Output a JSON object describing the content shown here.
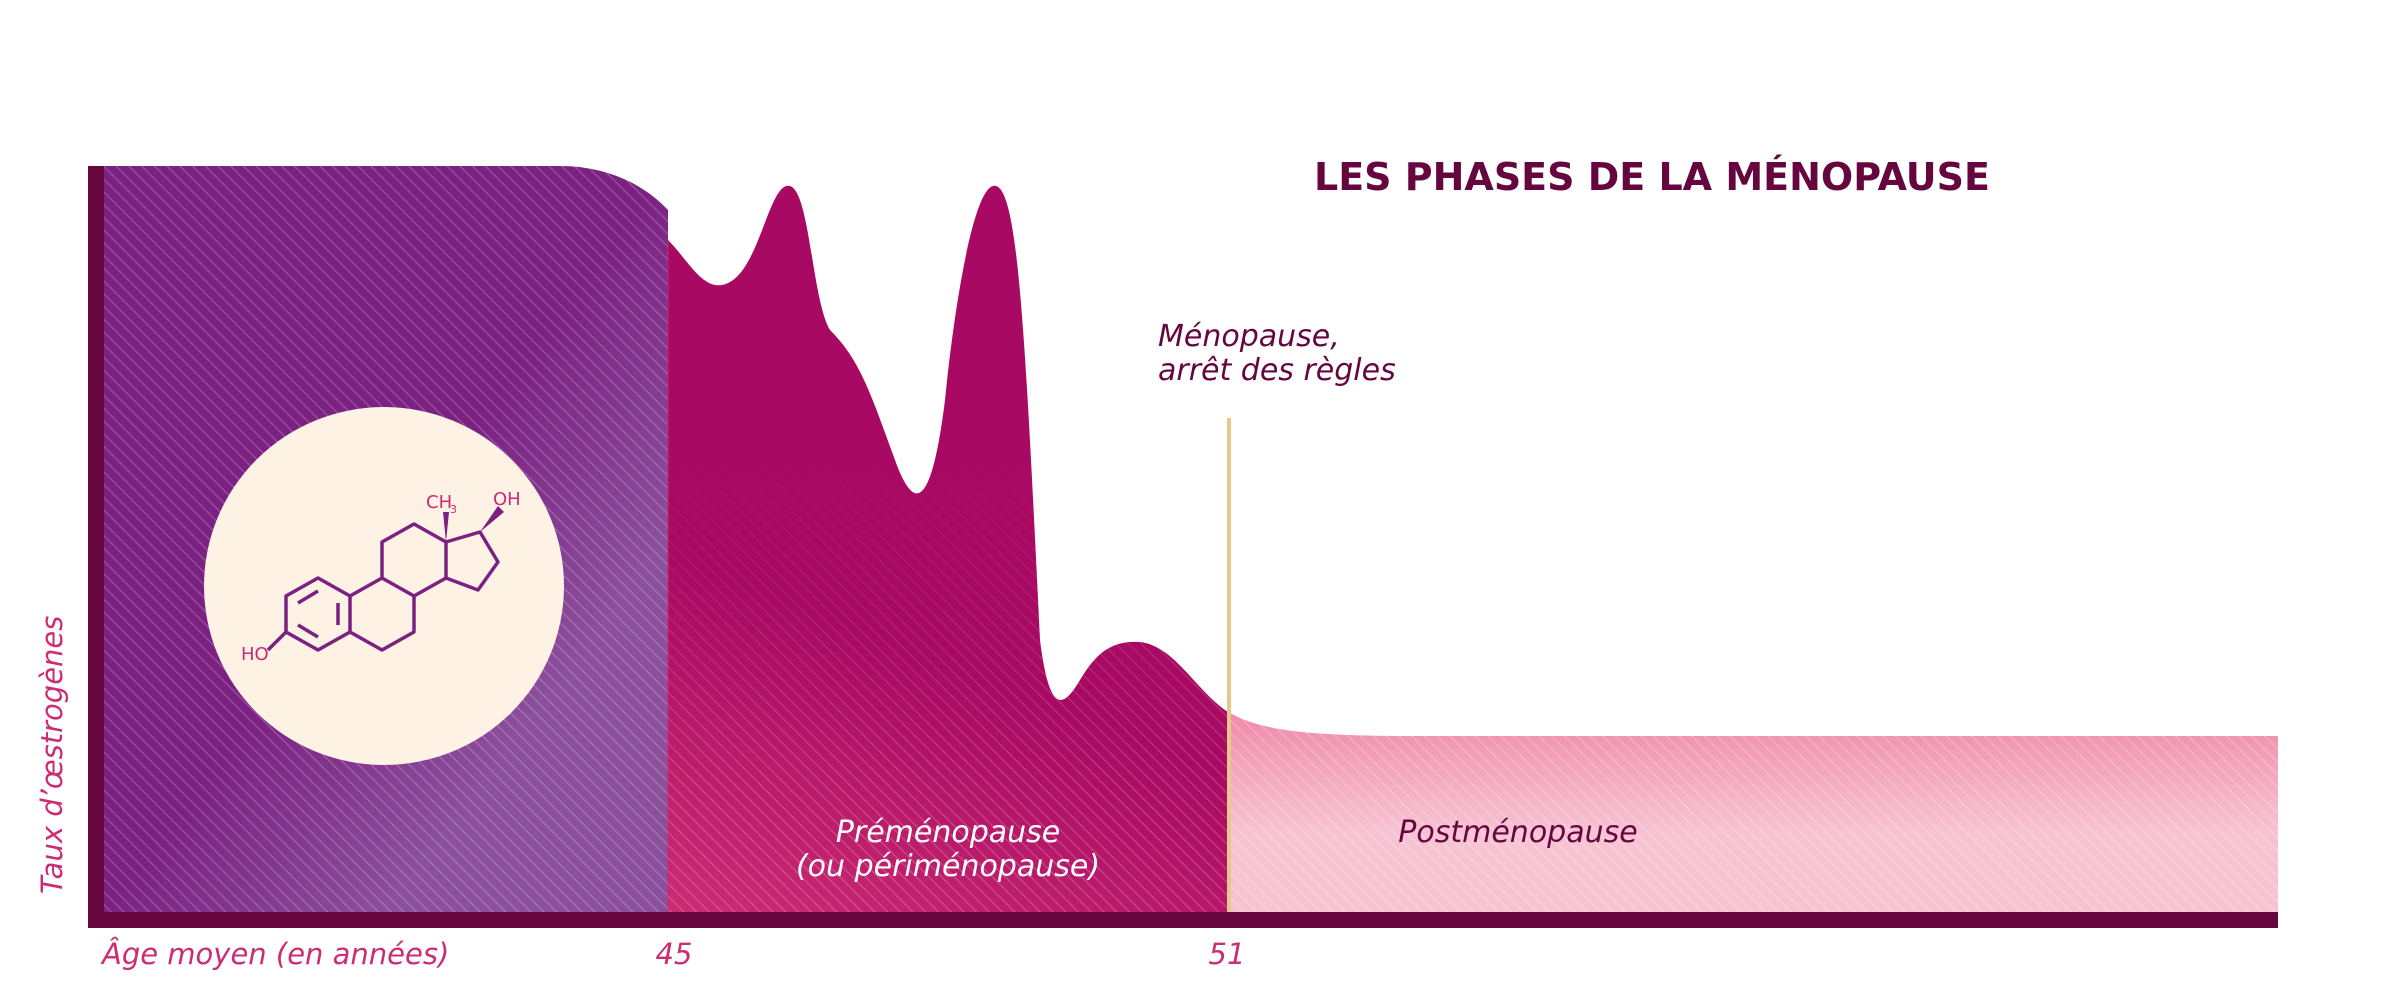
{
  "chart_data": {
    "type": "area",
    "title": "LES PHASES DE LA MÉNOPAUSE",
    "xlabel": "Âge moyen (en années)",
    "ylabel": "Taux d’œstrogènes",
    "x_ticks": [
      "45",
      "51"
    ],
    "grid": false,
    "regions": [
      {
        "label": "",
        "color": "#7b2182"
      },
      {
        "label_lines": [
          "Préménopause",
          "(ou périménopause)"
        ],
        "color": "#a80962"
      },
      {
        "label": "Postménopause",
        "color": "#ef8aa9"
      }
    ],
    "annotation": {
      "lines": [
        "Ménopause,",
        "arrêt des règles"
      ],
      "at_x": "51"
    },
    "molecule": {
      "labels": {
        "methyl": "CH",
        "methyl_sub": "3",
        "hydroxyl_top": "OH",
        "hydroxyl_left": "HO"
      }
    }
  },
  "colors": {
    "dark": "#66063f",
    "purple": "#7b2182",
    "purple_light": "#8b4f9c",
    "magenta": "#a80962",
    "magenta_light": "#cc2c73",
    "pink": "#ef8aa9",
    "pink_light": "#f7c3d3",
    "cream": "#fdf2e3",
    "gold": "#e6c88b",
    "accent_text": "#cc2c73"
  }
}
